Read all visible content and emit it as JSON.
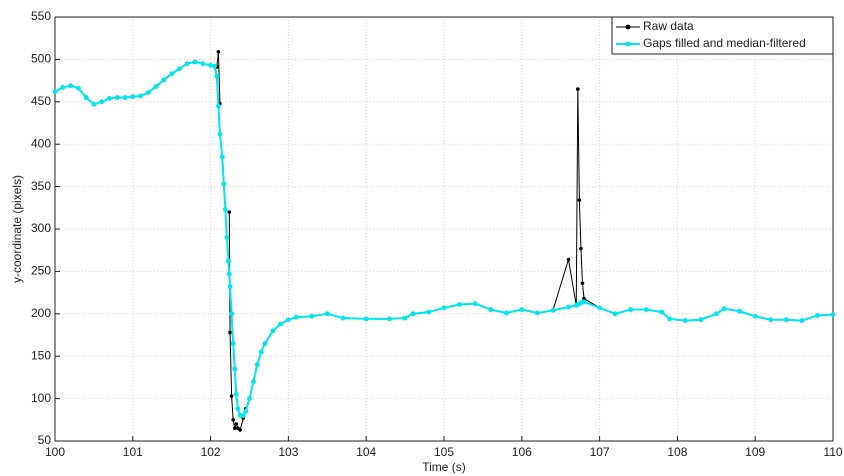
{
  "chart_data": {
    "type": "line",
    "x_label": "Time (s)",
    "y_label": "y-coordinate (pixels)",
    "x": [
      100,
      100.1,
      100.2,
      100.3,
      100.4,
      100.5,
      100.6,
      100.7,
      100.8,
      100.9,
      101,
      101.1,
      101.2,
      101.3,
      101.4,
      101.5,
      101.6,
      101.7,
      101.8,
      101.9,
      102,
      102.05,
      102.08,
      102.1,
      102.12,
      102.15,
      102.17,
      102.19,
      102.21,
      102.23,
      102.24,
      102.25,
      102.27,
      102.29,
      102.31,
      102.33,
      102.35,
      102.38,
      102.42,
      102.45,
      102.5,
      102.55,
      102.6,
      102.65,
      102.7,
      102.8,
      102.9,
      103,
      103.1,
      103.3,
      103.5,
      103.7,
      104,
      104.3,
      104.5,
      104.6,
      104.8,
      105,
      105.2,
      105.4,
      105.6,
      105.8,
      106,
      106.2,
      106.4,
      106.6,
      106.7,
      106.72,
      106.74,
      106.76,
      106.78,
      106.8,
      107,
      107.2,
      107.4,
      107.6,
      107.8,
      107.9,
      108.1,
      108.3,
      108.5,
      108.6,
      108.8,
      109,
      109.2,
      109.4,
      109.6,
      109.8,
      110
    ],
    "series": [
      {
        "name": "Raw data",
        "color": "#000000",
        "values": [
          462,
          467,
          469,
          466,
          455,
          447,
          450,
          454,
          455,
          455,
          456,
          457,
          461,
          468,
          476,
          483,
          489,
          495,
          497,
          495,
          493,
          492,
          491,
          509,
          448,
          null,
          null,
          null,
          null,
          null,
          320,
          178,
          103,
          75,
          65,
          70,
          65,
          63,
          77,
          88,
          100,
          120,
          140,
          155,
          165,
          180,
          188,
          193,
          196,
          197,
          200,
          195,
          194,
          194,
          195,
          200,
          202,
          207,
          211,
          212,
          205,
          201,
          205,
          201,
          204,
          264,
          210,
          465,
          334,
          277,
          236,
          218,
          207,
          200,
          205,
          205,
          202,
          194,
          192,
          193,
          200,
          206,
          203,
          197,
          193,
          193,
          192,
          198,
          199
        ]
      },
      {
        "name": "Gaps filled and median-filtered",
        "color": "#00e5ee",
        "values": [
          462,
          467,
          469,
          466,
          455,
          447,
          450,
          454,
          455,
          455,
          456,
          457,
          461,
          468,
          476,
          483,
          489,
          495,
          497,
          495,
          493,
          492,
          480,
          445,
          412,
          385,
          353,
          323,
          290,
          262,
          247,
          232,
          200,
          165,
          135,
          105,
          88,
          80,
          80,
          85,
          100,
          120,
          140,
          155,
          165,
          180,
          188,
          193,
          196,
          197,
          200,
          195,
          194,
          194,
          195,
          200,
          202,
          207,
          211,
          212,
          205,
          201,
          205,
          201,
          204,
          208,
          210,
          211,
          212,
          213,
          214,
          214,
          207,
          200,
          205,
          205,
          202,
          194,
          192,
          193,
          200,
          206,
          203,
          197,
          193,
          193,
          192,
          198,
          199
        ]
      }
    ],
    "xlim": [
      100,
      110
    ],
    "xticks": [
      100,
      101,
      102,
      103,
      104,
      105,
      106,
      107,
      108,
      109,
      110
    ],
    "ylim": [
      50,
      550
    ],
    "yticks": [
      50,
      100,
      150,
      200,
      250,
      300,
      350,
      400,
      450,
      500,
      550
    ],
    "grid": true,
    "legend": "top-right"
  }
}
